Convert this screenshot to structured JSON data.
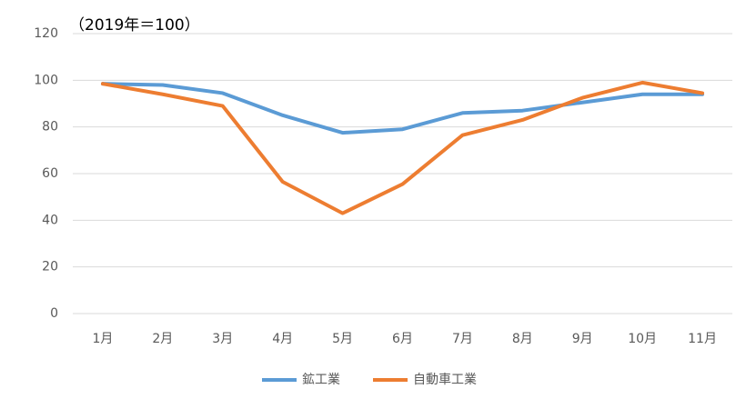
{
  "chart_data": {
    "type": "line",
    "annotation": "（2019年＝100）",
    "categories": [
      "1月",
      "2月",
      "3月",
      "4月",
      "5月",
      "6月",
      "7月",
      "8月",
      "9月",
      "10月",
      "11月"
    ],
    "series": [
      {
        "name": "鉱工業",
        "color": "#5b9bd5",
        "values": [
          98.5,
          98,
          94.5,
          85,
          77.5,
          79,
          86,
          87,
          90.5,
          94,
          94
        ]
      },
      {
        "name": "自動車工業",
        "color": "#ed7d31",
        "values": [
          98.5,
          94,
          89,
          56.5,
          43,
          55.5,
          76.5,
          83,
          92.5,
          99,
          94.5
        ]
      }
    ],
    "ylim": [
      0,
      120
    ],
    "yticks": [
      0,
      20,
      40,
      60,
      80,
      100,
      120
    ],
    "grid": true,
    "legend": "bottom"
  }
}
